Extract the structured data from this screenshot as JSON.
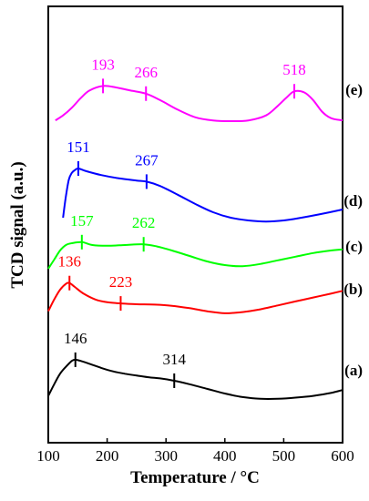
{
  "chart_data": {
    "type": "line",
    "xlabel": "Temperature / °C",
    "ylabel": "TCD signal (a.u.)",
    "xlim": [
      100,
      600
    ],
    "x_ticks": [
      100,
      200,
      300,
      400,
      500,
      600
    ],
    "series": [
      {
        "name": "(a)",
        "color": "#000000",
        "x": [
          100,
          110,
          120,
          130,
          140,
          146,
          155,
          170,
          190,
          210,
          230,
          250,
          270,
          290,
          314,
          340,
          370,
          400,
          430,
          460,
          490,
          520,
          550,
          580,
          600
        ],
        "y": [
          0.1,
          0.3,
          0.48,
          0.6,
          0.7,
          0.72,
          0.7,
          0.65,
          0.58,
          0.52,
          0.48,
          0.45,
          0.42,
          0.4,
          0.36,
          0.3,
          0.22,
          0.14,
          0.08,
          0.05,
          0.05,
          0.07,
          0.1,
          0.15,
          0.2
        ],
        "peaks": [
          146,
          314
        ]
      },
      {
        "name": "(b)",
        "color": "#ff0000",
        "x": [
          100,
          110,
          120,
          130,
          136,
          145,
          160,
          180,
          200,
          223,
          250,
          280,
          310,
          340,
          370,
          400,
          430,
          460,
          490,
          520,
          550,
          580,
          600
        ],
        "y": [
          0.1,
          0.4,
          0.65,
          0.8,
          0.82,
          0.72,
          0.55,
          0.4,
          0.33,
          0.3,
          0.28,
          0.27,
          0.24,
          0.18,
          0.1,
          0.05,
          0.08,
          0.15,
          0.25,
          0.35,
          0.45,
          0.55,
          0.62
        ],
        "peaks": [
          136,
          223
        ]
      },
      {
        "name": "(c)",
        "color": "#00ff00",
        "x": [
          100,
          110,
          120,
          130,
          140,
          157,
          175,
          200,
          230,
          262,
          285,
          310,
          340,
          370,
          400,
          430,
          460,
          490,
          520,
          550,
          580,
          600
        ],
        "y": [
          0.05,
          0.3,
          0.55,
          0.7,
          0.75,
          0.78,
          0.7,
          0.68,
          0.7,
          0.72,
          0.66,
          0.55,
          0.4,
          0.25,
          0.15,
          0.12,
          0.18,
          0.28,
          0.38,
          0.48,
          0.55,
          0.58
        ],
        "peaks": [
          157,
          262
        ]
      },
      {
        "name": "(d)",
        "color": "#0000ff",
        "x": [
          125,
          130,
          135,
          140,
          145,
          151,
          165,
          190,
          220,
          250,
          267,
          290,
          320,
          350,
          380,
          410,
          440,
          470,
          500,
          530,
          560,
          600
        ],
        "y": [
          0.1,
          0.5,
          0.8,
          0.92,
          0.97,
          1.0,
          0.95,
          0.88,
          0.82,
          0.78,
          0.76,
          0.68,
          0.52,
          0.35,
          0.2,
          0.1,
          0.05,
          0.03,
          0.05,
          0.1,
          0.16,
          0.25
        ],
        "peaks": [
          151,
          267
        ]
      },
      {
        "name": "(e)",
        "color": "#ff00ff",
        "x": [
          112,
          125,
          140,
          155,
          170,
          193,
          215,
          240,
          266,
          290,
          320,
          350,
          380,
          410,
          440,
          470,
          490,
          505,
          518,
          535,
          550,
          565,
          580,
          600
        ],
        "y": [
          0.02,
          0.15,
          0.35,
          0.6,
          0.8,
          0.92,
          0.88,
          0.8,
          0.72,
          0.55,
          0.3,
          0.1,
          0.02,
          0.0,
          0.02,
          0.15,
          0.4,
          0.62,
          0.78,
          0.75,
          0.55,
          0.25,
          0.08,
          0.02
        ],
        "peaks": [
          193,
          266,
          518
        ]
      }
    ]
  }
}
